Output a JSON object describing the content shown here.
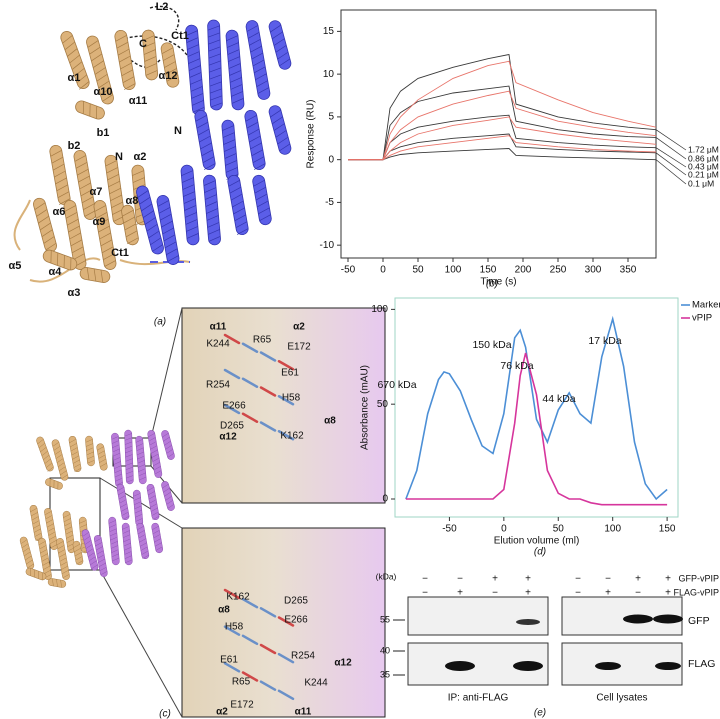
{
  "panel_labels": {
    "a": "(a)",
    "b": "(b)",
    "c": "(c)",
    "d": "(d)",
    "e": "(e)"
  },
  "structure_a": {
    "labels": [
      "L2",
      "C",
      "Ct1",
      "α1",
      "α10",
      "α12",
      "α11",
      "N",
      "b1",
      "N",
      "α2",
      "b2",
      "α7",
      "α8",
      "α6",
      "α9",
      "Ct1",
      "α5",
      "α4",
      "α3"
    ]
  },
  "inset_top": {
    "labels": [
      "α11",
      "α2",
      "K244",
      "R65",
      "E172",
      "E61",
      "R254",
      "H58",
      "E266",
      "D265",
      "K162",
      "α8",
      "α12"
    ]
  },
  "inset_bottom": {
    "labels": [
      "K162",
      "D265",
      "α8",
      "H58",
      "E266",
      "R254",
      "E61",
      "α12",
      "R65",
      "K244",
      "E172",
      "α2",
      "α11"
    ]
  },
  "chart_data": [
    {
      "type": "line",
      "x_label": "Time (s)",
      "y_label": "Response (RU)",
      "x": [
        -50,
        0,
        10,
        25,
        50,
        100,
        150,
        180,
        190,
        250,
        300,
        350,
        390
      ],
      "series": [
        {
          "name": "1.72 μM",
          "color": "#3a3a3a",
          "values": [
            0,
            0,
            6,
            8,
            9.5,
            10.8,
            11.8,
            12.3,
            6.5,
            5,
            4.3,
            3.8,
            3.5
          ]
        },
        {
          "name": "0.86 μM",
          "color": "#3a3a3a",
          "values": [
            0,
            0,
            4,
            5.5,
            6.8,
            7.8,
            8.3,
            8.6,
            4.5,
            3.5,
            3,
            2.7,
            2.6
          ]
        },
        {
          "name": "0.43 μM",
          "color": "#3a3a3a",
          "values": [
            0,
            0,
            2,
            3,
            3.8,
            4.5,
            5,
            5.2,
            2.5,
            2,
            1.7,
            1.5,
            1.4
          ]
        },
        {
          "name": "0.21 μM",
          "color": "#3a3a3a",
          "values": [
            0,
            0,
            1,
            1.5,
            2,
            2.5,
            2.8,
            3,
            1.5,
            1.2,
            1,
            0.9,
            0.8
          ]
        },
        {
          "name": "0.1 μM",
          "color": "#3a3a3a",
          "values": [
            0,
            0,
            0.3,
            0.6,
            0.8,
            1,
            1.2,
            1.3,
            0.5,
            0.3,
            0.2,
            0.1,
            0
          ]
        },
        {
          "color": "#e8756b",
          "values": [
            0,
            0,
            3,
            5,
            7,
            9.5,
            11,
            11.5,
            9,
            7,
            5.5,
            4.5,
            3.8
          ]
        },
        {
          "color": "#e8756b",
          "values": [
            0,
            0,
            2,
            3.5,
            5,
            6.5,
            7.5,
            8,
            6,
            4.5,
            3.8,
            3.2,
            2.8
          ]
        },
        {
          "color": "#e8756b",
          "values": [
            0,
            0,
            1,
            2,
            3,
            4,
            4.6,
            5,
            3.8,
            3,
            2.5,
            2.1,
            1.8
          ]
        },
        {
          "color": "#e8756b",
          "values": [
            0,
            0,
            0.5,
            1,
            1.5,
            2,
            2.5,
            2.8,
            2,
            1.5,
            1.2,
            1,
            0.9
          ]
        }
      ],
      "xlim": [
        -60,
        390
      ],
      "ylim": [
        -11.5,
        17.5
      ],
      "xticks": [
        -50,
        0,
        50,
        100,
        150,
        200,
        250,
        300,
        350
      ],
      "yticks": [
        -10,
        -5,
        0,
        5,
        10,
        15
      ]
    },
    {
      "type": "line",
      "x_label": "Elution volume (ml)",
      "y_label": "Absorbance (mAU)",
      "x": [
        -90,
        -80,
        -70,
        -60,
        -55,
        -50,
        -40,
        -30,
        -20,
        -10,
        0,
        10,
        15,
        20,
        30,
        40,
        50,
        60,
        70,
        80,
        90,
        100,
        110,
        120,
        130,
        140,
        150
      ],
      "series": [
        {
          "name": "Marker",
          "color": "#4c8fd6",
          "values": [
            0,
            15,
            45,
            63,
            67,
            66,
            57,
            42,
            28,
            24,
            45,
            85,
            89,
            80,
            42,
            30,
            47,
            56,
            45,
            40,
            75,
            95,
            70,
            30,
            8,
            0,
            5
          ]
        },
        {
          "name": "vPIP",
          "color": "#d6359c",
          "values": [
            0,
            0,
            0,
            0,
            0,
            0,
            0,
            0,
            0,
            0,
            5,
            40,
            65,
            77,
            55,
            15,
            3,
            0,
            0,
            -2,
            -3,
            -3,
            -3,
            -3,
            -3,
            -3,
            -3
          ]
        }
      ],
      "annotations": [
        "670 kDa",
        "150 kDa",
        "76 kDa",
        "44 kDa",
        "17 kDa"
      ],
      "xlim": [
        -100,
        160
      ],
      "ylim": [
        -9.5,
        106
      ],
      "xticks": [
        -50,
        0,
        50,
        100,
        150
      ],
      "yticks": [
        0,
        50,
        100
      ],
      "legend": "upper right"
    }
  ],
  "blot": {
    "rows": [
      {
        "label": "GFP-vPIP",
        "signs": [
          "−",
          "−",
          "+",
          "+",
          "−",
          "−",
          "+",
          "+"
        ]
      },
      {
        "label": "FLAG-vPIP",
        "signs": [
          "−",
          "+",
          "−",
          "+",
          "−",
          "+",
          "−",
          "+"
        ]
      }
    ],
    "marker_unit": "(kDa)",
    "markers": [
      "55",
      "40",
      "35"
    ],
    "panels": [
      "GFP",
      "FLAG"
    ],
    "captions": [
      "IP: anti-FLAG",
      "Cell lysates"
    ]
  }
}
